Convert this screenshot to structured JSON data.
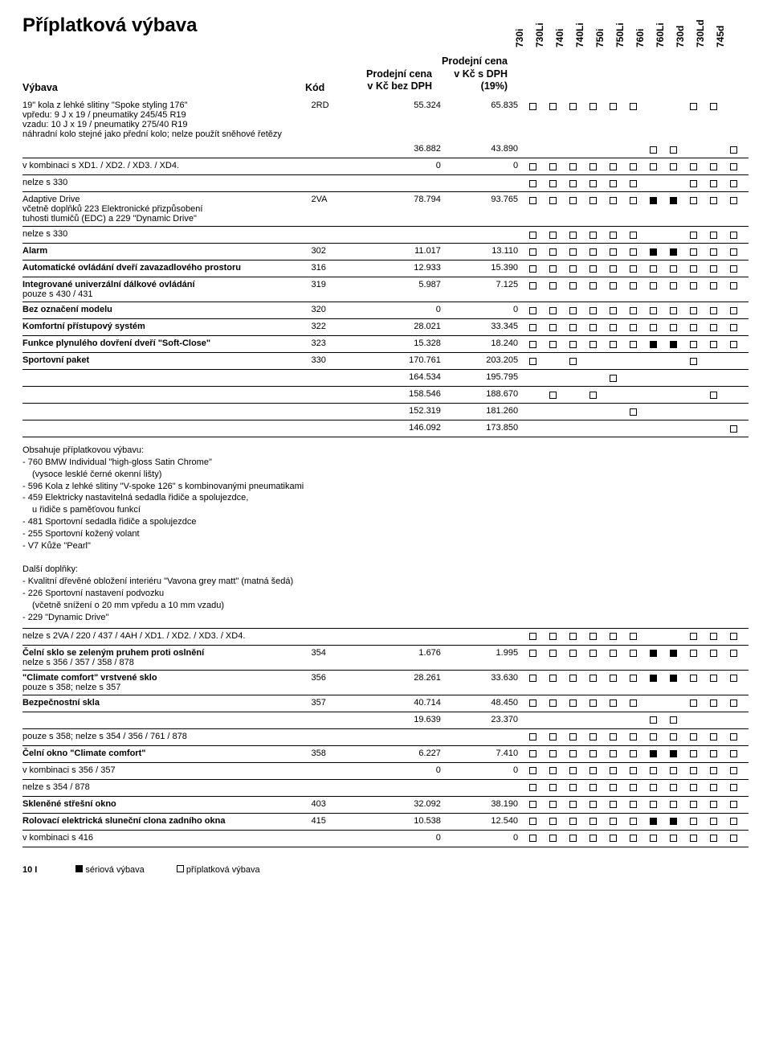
{
  "title": "Příplatková výbava",
  "header": {
    "name": "Výbava",
    "code": "Kód",
    "price_noVat_l1": "Prodejní cena",
    "price_noVat_l2": "v Kč bez DPH",
    "price_vat_l1": "Prodejní cena",
    "price_vat_l2": "v Kč s DPH",
    "price_vat_l3": "(19%)",
    "models": [
      "730i",
      "730Li",
      "740i",
      "740Li",
      "750i",
      "750Li",
      "760i",
      "760Li",
      "730d",
      "730Ld",
      "745d"
    ]
  },
  "rows": [
    {
      "name": "19\" kola z lehké slitiny \"Spoke styling 176\"",
      "sub": [
        "vpředu: 9 J x 19 / pneumatiky 245/45 R19",
        "vzadu: 10 J x 19 / pneumatiky 275/40 R19",
        "náhradní kolo stejné jako přední kolo; nelze použít sněhové řetězy"
      ],
      "code": "2RD",
      "p1": "55.324",
      "p2": "65.835",
      "m": [
        "o",
        "o",
        "o",
        "o",
        "o",
        "o",
        "",
        "",
        "o",
        "o",
        ""
      ],
      "line": false
    },
    {
      "name": "",
      "code": "",
      "p1": "36.882",
      "p2": "43.890",
      "m": [
        "",
        "",
        "",
        "",
        "",
        "",
        "o",
        "o",
        "",
        "",
        "o"
      ],
      "line": true
    },
    {
      "name": "v kombinaci s XD1. / XD2. / XD3. / XD4.",
      "code": "",
      "p1": "0",
      "p2": "0",
      "m": [
        "o",
        "o",
        "o",
        "o",
        "o",
        "o",
        "o",
        "o",
        "o",
        "o",
        "o"
      ],
      "line": true
    },
    {
      "name": "nelze s 330",
      "code": "",
      "p1": "",
      "p2": "",
      "m": [
        "o",
        "o",
        "o",
        "o",
        "o",
        "o",
        "",
        "",
        "o",
        "o",
        "o"
      ],
      "line": true
    },
    {
      "name": "Adaptive Drive",
      "sub": [
        "včetně doplňků 223 Elektronické přizpůsobení",
        "tuhosti tlumičů (EDC) a 229 \"Dynamic Drive\""
      ],
      "code": "2VA",
      "p1": "78.794",
      "p2": "93.765",
      "m": [
        "o",
        "o",
        "o",
        "o",
        "o",
        "o",
        "f",
        "f",
        "o",
        "o",
        "o"
      ],
      "line": true
    },
    {
      "name": "nelze s 330",
      "code": "",
      "p1": "",
      "p2": "",
      "m": [
        "o",
        "o",
        "o",
        "o",
        "o",
        "o",
        "",
        "",
        "o",
        "o",
        "o"
      ],
      "line": true
    },
    {
      "name": "Alarm",
      "code": "302",
      "p1": "11.017",
      "p2": "13.110",
      "m": [
        "o",
        "o",
        "o",
        "o",
        "o",
        "o",
        "f",
        "f",
        "o",
        "o",
        "o"
      ],
      "line": true,
      "bold": true
    },
    {
      "name": "Automatické ovládání dveří zavazadlového prostoru",
      "code": "316",
      "p1": "12.933",
      "p2": "15.390",
      "m": [
        "o",
        "o",
        "o",
        "o",
        "o",
        "o",
        "o",
        "o",
        "o",
        "o",
        "o"
      ],
      "line": true,
      "bold": true
    },
    {
      "name": "Integrované univerzální dálkové ovládání",
      "sub": [
        "pouze s 430 / 431"
      ],
      "code": "319",
      "p1": "5.987",
      "p2": "7.125",
      "m": [
        "o",
        "o",
        "o",
        "o",
        "o",
        "o",
        "o",
        "o",
        "o",
        "o",
        "o"
      ],
      "line": true,
      "bold": true
    },
    {
      "name": "Bez označení modelu",
      "code": "320",
      "p1": "0",
      "p2": "0",
      "m": [
        "o",
        "o",
        "o",
        "o",
        "o",
        "o",
        "o",
        "o",
        "o",
        "o",
        "o"
      ],
      "line": true,
      "bold": true
    },
    {
      "name": "Komfortní přístupový systém",
      "code": "322",
      "p1": "28.021",
      "p2": "33.345",
      "m": [
        "o",
        "o",
        "o",
        "o",
        "o",
        "o",
        "o",
        "o",
        "o",
        "o",
        "o"
      ],
      "line": true,
      "bold": true
    },
    {
      "name": "Funkce plynulého dovření dveří \"Soft-Close\"",
      "code": "323",
      "p1": "15.328",
      "p2": "18.240",
      "m": [
        "o",
        "o",
        "o",
        "o",
        "o",
        "o",
        "f",
        "f",
        "o",
        "o",
        "o"
      ],
      "line": true,
      "bold": true
    },
    {
      "name": "Sportovní paket",
      "code": "330",
      "p1": "170.761",
      "p2": "203.205",
      "m": [
        "o",
        "",
        "o",
        "",
        "",
        "",
        "",
        "",
        "o",
        "",
        ""
      ],
      "line": true,
      "bold": true
    },
    {
      "name": "",
      "code": "",
      "p1": "164.534",
      "p2": "195.795",
      "m": [
        "",
        "",
        "",
        "",
        "o",
        "",
        "",
        "",
        "",
        "",
        ""
      ],
      "line": true
    },
    {
      "name": "",
      "code": "",
      "p1": "158.546",
      "p2": "188.670",
      "m": [
        "",
        "o",
        "",
        "o",
        "",
        "",
        "",
        "",
        "",
        "o",
        ""
      ],
      "line": true
    },
    {
      "name": "",
      "code": "",
      "p1": "152.319",
      "p2": "181.260",
      "m": [
        "",
        "",
        "",
        "",
        "",
        "o",
        "",
        "",
        "",
        "",
        ""
      ],
      "line": true
    },
    {
      "name": "",
      "code": "",
      "p1": "146.092",
      "p2": "173.850",
      "m": [
        "",
        "",
        "",
        "",
        "",
        "",
        "",
        "",
        "",
        "",
        "o"
      ],
      "line": true
    },
    {
      "descBlock": "block1"
    },
    {
      "name": "nelze s 2VA / 220 / 437 / 4AH / XD1. / XD2. / XD3. / XD4.",
      "code": "",
      "p1": "",
      "p2": "",
      "m": [
        "o",
        "o",
        "o",
        "o",
        "o",
        "o",
        "",
        "",
        "o",
        "o",
        "o"
      ],
      "line": true
    },
    {
      "name": "Čelní sklo se zeleným pruhem proti oslnění",
      "sub": [
        "nelze s 356 / 357 / 358 / 878"
      ],
      "code": "354",
      "p1": "1.676",
      "p2": "1.995",
      "m": [
        "o",
        "o",
        "o",
        "o",
        "o",
        "o",
        "f",
        "f",
        "o",
        "o",
        "o"
      ],
      "line": true,
      "bold": true
    },
    {
      "name": "\"Climate comfort\" vrstvené sklo",
      "sub": [
        "pouze s 358; nelze s 357"
      ],
      "code": "356",
      "p1": "28.261",
      "p2": "33.630",
      "m": [
        "o",
        "o",
        "o",
        "o",
        "o",
        "o",
        "f",
        "f",
        "o",
        "o",
        "o"
      ],
      "line": true,
      "bold": true
    },
    {
      "name": "Bezpečnostní skla",
      "code": "357",
      "p1": "40.714",
      "p2": "48.450",
      "m": [
        "o",
        "o",
        "o",
        "o",
        "o",
        "o",
        "",
        "",
        "o",
        "o",
        "o"
      ],
      "line": true,
      "bold": true
    },
    {
      "name": "",
      "code": "",
      "p1": "19.639",
      "p2": "23.370",
      "m": [
        "",
        "",
        "",
        "",
        "",
        "",
        "o",
        "o",
        "",
        "",
        ""
      ],
      "line": true
    },
    {
      "name": "pouze s 358; nelze s 354 / 356 / 761 / 878",
      "code": "",
      "p1": "",
      "p2": "",
      "m": [
        "o",
        "o",
        "o",
        "o",
        "o",
        "o",
        "o",
        "o",
        "o",
        "o",
        "o"
      ],
      "line": true
    },
    {
      "name": "Čelní okno \"Climate comfort\"",
      "code": "358",
      "p1": "6.227",
      "p2": "7.410",
      "m": [
        "o",
        "o",
        "o",
        "o",
        "o",
        "o",
        "f",
        "f",
        "o",
        "o",
        "o"
      ],
      "line": true,
      "bold": true
    },
    {
      "name": "v kombinaci s 356 / 357",
      "code": "",
      "p1": "0",
      "p2": "0",
      "m": [
        "o",
        "o",
        "o",
        "o",
        "o",
        "o",
        "o",
        "o",
        "o",
        "o",
        "o"
      ],
      "line": true
    },
    {
      "name": "nelze s 354 / 878",
      "code": "",
      "p1": "",
      "p2": "",
      "m": [
        "o",
        "o",
        "o",
        "o",
        "o",
        "o",
        "o",
        "o",
        "o",
        "o",
        "o"
      ],
      "line": true
    },
    {
      "name": "Skleněné střešní okno",
      "code": "403",
      "p1": "32.092",
      "p2": "38.190",
      "m": [
        "o",
        "o",
        "o",
        "o",
        "o",
        "o",
        "o",
        "o",
        "o",
        "o",
        "o"
      ],
      "line": true,
      "bold": true
    },
    {
      "name": "Rolovací elektrická sluneční clona zadního okna",
      "code": "415",
      "p1": "10.538",
      "p2": "12.540",
      "m": [
        "o",
        "o",
        "o",
        "o",
        "o",
        "o",
        "f",
        "f",
        "o",
        "o",
        "o"
      ],
      "line": true,
      "bold": true
    },
    {
      "name": "v kombinaci s 416",
      "code": "",
      "p1": "0",
      "p2": "0",
      "m": [
        "o",
        "o",
        "o",
        "o",
        "o",
        "o",
        "o",
        "o",
        "o",
        "o",
        "o"
      ],
      "line": true
    }
  ],
  "descBlocks": {
    "block1": [
      "Obsahuje příplatkovou výbavu:",
      "- 760 BMW Individual \"high-gloss Satin Chrome\"",
      "  (vysoce lesklé černé okenní lišty)",
      "- 596 Kola z lehké slitiny \"V-spoke 126\" s kombinovanými pneumatikami",
      "- 459 Elektricky nastavitelná sedadla řidiče a spolujezdce,",
      "  u řidiče s paměťovou funkcí",
      "- 481 Sportovní sedadla řidiče a spolujezdce",
      "- 255 Sportovní kožený volant",
      "- V7 Kůže \"Pearl\"",
      "",
      "Další doplňky:",
      "- Kvalitní dřevěné obložení interiéru \"Vavona grey matt\" (matná šedá)",
      "- 226 Sportovní nastavení podvozku",
      "  (včetně snížení o 20 mm vpředu a 10 mm vzadu)",
      "- 229 \"Dynamic Drive\""
    ]
  },
  "footer": {
    "page": "10 I",
    "legend_std": "sériová výbava",
    "legend_opt": "příplatková výbava"
  }
}
